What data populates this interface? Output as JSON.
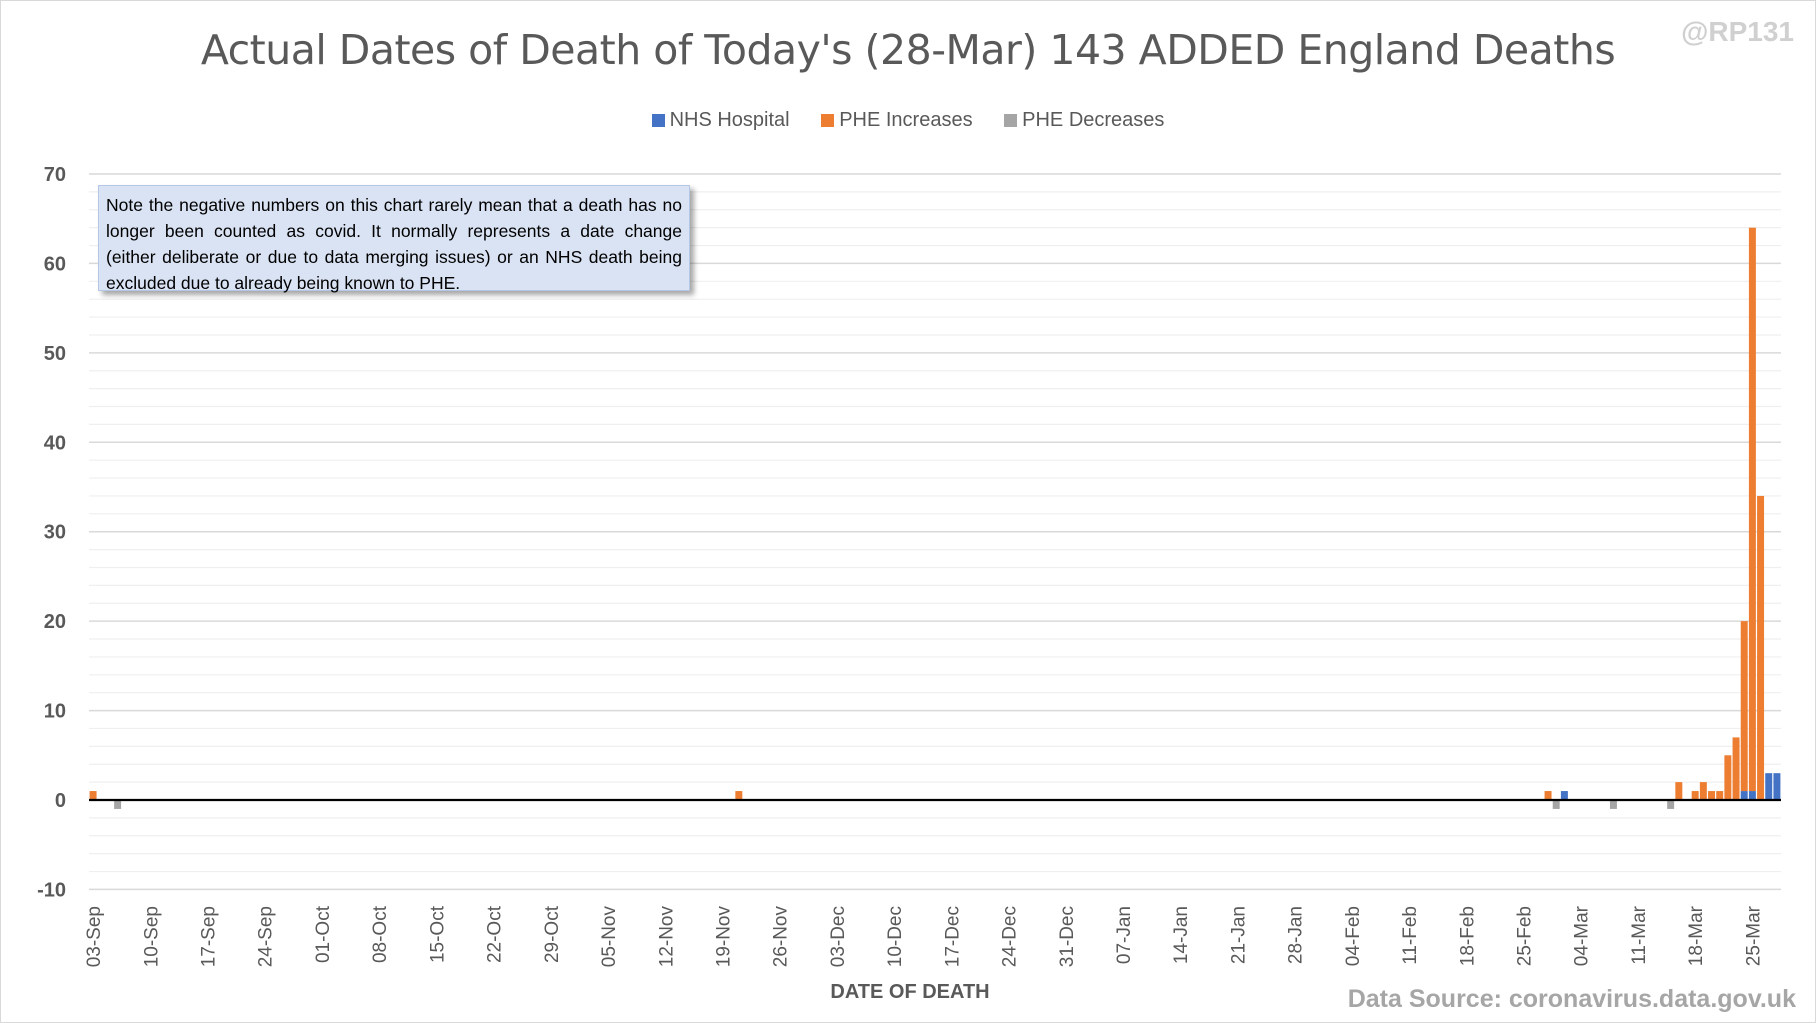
{
  "chart_data": {
    "type": "bar",
    "stacked": true,
    "title": "Actual Dates of Death of Today's (28-Mar) 143 ADDED England Deaths",
    "watermark": "@RP131",
    "xlabel": "DATE OF DEATH",
    "ylabel": "",
    "ylim": [
      -10,
      70
    ],
    "yticks": [
      -10,
      0,
      10,
      20,
      30,
      40,
      50,
      60,
      70
    ],
    "grid": true,
    "legend_position": "top",
    "start_date": "03-Sep",
    "num_days": 207,
    "xtick_labels": [
      "03-Sep",
      "10-Sep",
      "17-Sep",
      "24-Sep",
      "01-Oct",
      "08-Oct",
      "15-Oct",
      "22-Oct",
      "29-Oct",
      "05-Nov",
      "12-Nov",
      "19-Nov",
      "26-Nov",
      "03-Dec",
      "10-Dec",
      "17-Dec",
      "24-Dec",
      "31-Dec",
      "07-Jan",
      "14-Jan",
      "21-Jan",
      "28-Jan",
      "04-Feb",
      "11-Feb",
      "18-Feb",
      "25-Feb",
      "04-Mar",
      "11-Mar",
      "18-Mar",
      "25-Mar"
    ],
    "series": [
      {
        "name": "NHS Hospital",
        "color": "#4472c4",
        "points": [
          [
            180,
            1
          ],
          [
            202,
            1
          ],
          [
            203,
            1
          ],
          [
            205,
            3
          ],
          [
            206,
            3
          ]
        ]
      },
      {
        "name": "PHE Increases",
        "color": "#ed7d31",
        "points": [
          [
            0,
            1
          ],
          [
            79,
            1
          ],
          [
            178,
            1
          ],
          [
            194,
            2
          ],
          [
            196,
            1
          ],
          [
            197,
            2
          ],
          [
            198,
            1
          ],
          [
            199,
            1
          ],
          [
            200,
            5
          ],
          [
            201,
            7
          ],
          [
            202,
            19
          ],
          [
            203,
            63
          ],
          [
            204,
            34
          ]
        ]
      },
      {
        "name": "PHE Decreases",
        "color": "#a5a5a5",
        "points": [
          [
            3,
            -1
          ],
          [
            179,
            -1
          ],
          [
            186,
            -1
          ],
          [
            193,
            -1
          ]
        ]
      }
    ],
    "annotation": "Note the negative numbers on this chart rarely mean that a death has no longer been counted as covid. It normally represents a date change (either deliberate or due to data merging issues) or an NHS death being excluded due to already being known to PHE.",
    "source": "Data Source: coronavirus.data.gov.uk"
  }
}
